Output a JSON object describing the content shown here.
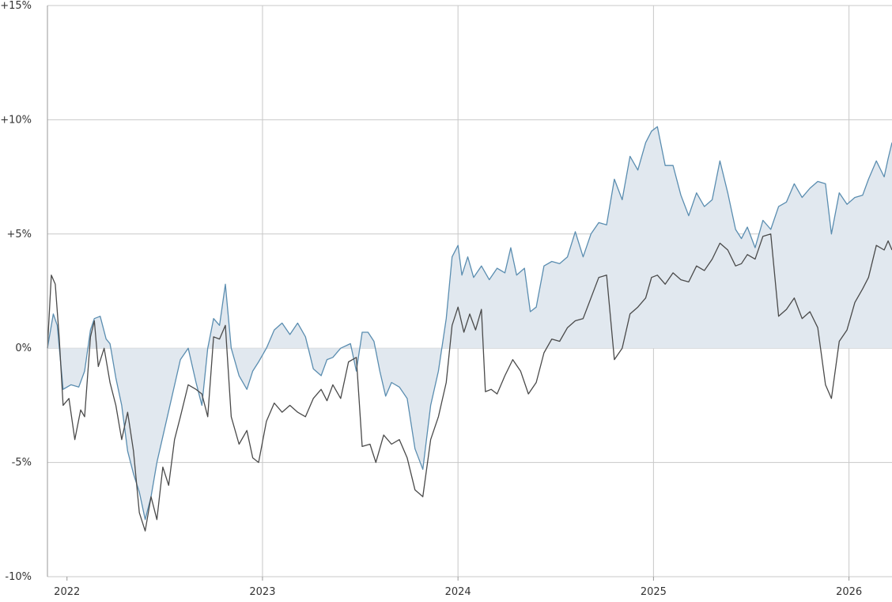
{
  "colors": {
    "series_a": "#5a8db0",
    "series_a_fill": "#e1e8ef",
    "series_b": "#4a4a4a",
    "grid": "#c8c8c8",
    "axis": "#999999",
    "background": "#ffffff"
  },
  "chart_data": {
    "type": "area",
    "title": "",
    "xlabel": "",
    "ylabel": "",
    "grid": true,
    "legend": "none",
    "xlim": [
      2021.9,
      2026.22
    ],
    "ylim": [
      -10,
      15
    ],
    "y_ticks": [
      {
        "value": 15,
        "label": "+15%"
      },
      {
        "value": 10,
        "label": "+10%"
      },
      {
        "value": 5,
        "label": "+5%"
      },
      {
        "value": 0,
        "label": "0%"
      },
      {
        "value": -5,
        "label": "-5%"
      },
      {
        "value": -10,
        "label": "-10%"
      }
    ],
    "x_ticks": [
      {
        "value": 2022.0,
        "label": "2022",
        "grid": false
      },
      {
        "value": 2023.0,
        "label": "2023",
        "grid": true
      },
      {
        "value": 2024.0,
        "label": "2024",
        "grid": true
      },
      {
        "value": 2025.0,
        "label": "2025",
        "grid": true
      },
      {
        "value": 2026.0,
        "label": "2026",
        "grid": true
      }
    ],
    "series": [
      {
        "filled": true,
        "points": [
          [
            2021.9,
            0.0
          ],
          [
            2021.93,
            1.5
          ],
          [
            2021.95,
            1.0
          ],
          [
            2021.98,
            -1.8
          ],
          [
            2022.02,
            -1.6
          ],
          [
            2022.06,
            -1.7
          ],
          [
            2022.09,
            -1.0
          ],
          [
            2022.12,
            0.8
          ],
          [
            2022.14,
            1.3
          ],
          [
            2022.17,
            1.4
          ],
          [
            2022.2,
            0.4
          ],
          [
            2022.22,
            0.2
          ],
          [
            2022.25,
            -1.3
          ],
          [
            2022.28,
            -2.5
          ],
          [
            2022.31,
            -4.5
          ],
          [
            2022.34,
            -5.5
          ],
          [
            2022.37,
            -6.3
          ],
          [
            2022.4,
            -7.5
          ],
          [
            2022.43,
            -6.5
          ],
          [
            2022.46,
            -5.0
          ],
          [
            2022.5,
            -3.5
          ],
          [
            2022.54,
            -2.0
          ],
          [
            2022.58,
            -0.5
          ],
          [
            2022.62,
            0.0
          ],
          [
            2022.66,
            -1.5
          ],
          [
            2022.69,
            -2.5
          ],
          [
            2022.72,
            0.0
          ],
          [
            2022.75,
            1.3
          ],
          [
            2022.78,
            1.0
          ],
          [
            2022.81,
            2.8
          ],
          [
            2022.84,
            0.0
          ],
          [
            2022.88,
            -1.2
          ],
          [
            2022.92,
            -1.8
          ],
          [
            2022.95,
            -1.0
          ],
          [
            2022.98,
            -0.6
          ],
          [
            2023.02,
            0.0
          ],
          [
            2023.06,
            0.8
          ],
          [
            2023.1,
            1.1
          ],
          [
            2023.14,
            0.6
          ],
          [
            2023.18,
            1.1
          ],
          [
            2023.22,
            0.5
          ],
          [
            2023.26,
            -0.9
          ],
          [
            2023.3,
            -1.2
          ],
          [
            2023.33,
            -0.5
          ],
          [
            2023.36,
            -0.4
          ],
          [
            2023.4,
            0.0
          ],
          [
            2023.45,
            0.2
          ],
          [
            2023.48,
            -1.0
          ],
          [
            2023.51,
            0.7
          ],
          [
            2023.54,
            0.7
          ],
          [
            2023.57,
            0.3
          ],
          [
            2023.6,
            -1.0
          ],
          [
            2023.63,
            -2.1
          ],
          [
            2023.66,
            -1.5
          ],
          [
            2023.7,
            -1.7
          ],
          [
            2023.74,
            -2.2
          ],
          [
            2023.78,
            -4.4
          ],
          [
            2023.82,
            -5.3
          ],
          [
            2023.86,
            -2.5
          ],
          [
            2023.9,
            -1.0
          ],
          [
            2023.94,
            1.3
          ],
          [
            2023.97,
            4.0
          ],
          [
            2024.0,
            4.5
          ],
          [
            2024.02,
            3.2
          ],
          [
            2024.05,
            4.0
          ],
          [
            2024.08,
            3.1
          ],
          [
            2024.12,
            3.6
          ],
          [
            2024.16,
            3.0
          ],
          [
            2024.2,
            3.5
          ],
          [
            2024.24,
            3.3
          ],
          [
            2024.27,
            4.4
          ],
          [
            2024.3,
            3.2
          ],
          [
            2024.34,
            3.5
          ],
          [
            2024.37,
            1.6
          ],
          [
            2024.4,
            1.8
          ],
          [
            2024.44,
            3.6
          ],
          [
            2024.48,
            3.8
          ],
          [
            2024.52,
            3.7
          ],
          [
            2024.56,
            4.0
          ],
          [
            2024.6,
            5.1
          ],
          [
            2024.64,
            4.0
          ],
          [
            2024.68,
            5.0
          ],
          [
            2024.72,
            5.5
          ],
          [
            2024.76,
            5.4
          ],
          [
            2024.8,
            7.4
          ],
          [
            2024.84,
            6.5
          ],
          [
            2024.88,
            8.4
          ],
          [
            2024.92,
            7.8
          ],
          [
            2024.96,
            9.0
          ],
          [
            2024.99,
            9.5
          ],
          [
            2025.02,
            9.7
          ],
          [
            2025.06,
            8.0
          ],
          [
            2025.1,
            8.0
          ],
          [
            2025.14,
            6.7
          ],
          [
            2025.18,
            5.8
          ],
          [
            2025.22,
            6.8
          ],
          [
            2025.26,
            6.2
          ],
          [
            2025.3,
            6.5
          ],
          [
            2025.34,
            8.2
          ],
          [
            2025.38,
            6.8
          ],
          [
            2025.42,
            5.2
          ],
          [
            2025.45,
            4.8
          ],
          [
            2025.48,
            5.3
          ],
          [
            2025.52,
            4.4
          ],
          [
            2025.56,
            5.6
          ],
          [
            2025.6,
            5.2
          ],
          [
            2025.64,
            6.2
          ],
          [
            2025.68,
            6.4
          ],
          [
            2025.72,
            7.2
          ],
          [
            2025.76,
            6.6
          ],
          [
            2025.8,
            7.0
          ],
          [
            2025.84,
            7.3
          ],
          [
            2025.88,
            7.2
          ],
          [
            2025.91,
            5.0
          ],
          [
            2025.95,
            6.8
          ],
          [
            2025.99,
            6.3
          ],
          [
            2026.03,
            6.6
          ],
          [
            2026.07,
            6.7
          ],
          [
            2026.1,
            7.4
          ],
          [
            2026.14,
            8.2
          ],
          [
            2026.18,
            7.5
          ],
          [
            2026.2,
            8.3
          ],
          [
            2026.22,
            9.0
          ]
        ]
      },
      {
        "filled": false,
        "points": [
          [
            2021.9,
            0.0
          ],
          [
            2021.92,
            3.2
          ],
          [
            2021.94,
            2.8
          ],
          [
            2021.96,
            0.5
          ],
          [
            2021.98,
            -2.5
          ],
          [
            2022.01,
            -2.2
          ],
          [
            2022.04,
            -4.0
          ],
          [
            2022.07,
            -2.7
          ],
          [
            2022.09,
            -3.0
          ],
          [
            2022.12,
            0.5
          ],
          [
            2022.14,
            1.2
          ],
          [
            2022.16,
            -0.8
          ],
          [
            2022.19,
            0.0
          ],
          [
            2022.22,
            -1.5
          ],
          [
            2022.25,
            -2.5
          ],
          [
            2022.28,
            -4.0
          ],
          [
            2022.31,
            -2.8
          ],
          [
            2022.34,
            -4.5
          ],
          [
            2022.37,
            -7.2
          ],
          [
            2022.4,
            -8.0
          ],
          [
            2022.43,
            -6.5
          ],
          [
            2022.46,
            -7.5
          ],
          [
            2022.49,
            -5.2
          ],
          [
            2022.52,
            -6.0
          ],
          [
            2022.55,
            -4.0
          ],
          [
            2022.58,
            -3.0
          ],
          [
            2022.62,
            -1.6
          ],
          [
            2022.66,
            -1.8
          ],
          [
            2022.69,
            -2.0
          ],
          [
            2022.72,
            -3.0
          ],
          [
            2022.75,
            0.5
          ],
          [
            2022.78,
            0.4
          ],
          [
            2022.81,
            1.0
          ],
          [
            2022.84,
            -3.0
          ],
          [
            2022.88,
            -4.2
          ],
          [
            2022.92,
            -3.6
          ],
          [
            2022.95,
            -4.8
          ],
          [
            2022.98,
            -5.0
          ],
          [
            2023.02,
            -3.2
          ],
          [
            2023.06,
            -2.4
          ],
          [
            2023.1,
            -2.8
          ],
          [
            2023.14,
            -2.5
          ],
          [
            2023.18,
            -2.8
          ],
          [
            2023.22,
            -3.0
          ],
          [
            2023.26,
            -2.2
          ],
          [
            2023.3,
            -1.8
          ],
          [
            2023.33,
            -2.3
          ],
          [
            2023.36,
            -1.6
          ],
          [
            2023.4,
            -2.2
          ],
          [
            2023.44,
            -0.6
          ],
          [
            2023.48,
            -0.4
          ],
          [
            2023.51,
            -4.3
          ],
          [
            2023.55,
            -4.2
          ],
          [
            2023.58,
            -5.0
          ],
          [
            2023.62,
            -3.8
          ],
          [
            2023.66,
            -4.2
          ],
          [
            2023.7,
            -4.0
          ],
          [
            2023.74,
            -4.8
          ],
          [
            2023.78,
            -6.2
          ],
          [
            2023.82,
            -6.5
          ],
          [
            2023.86,
            -4.0
          ],
          [
            2023.9,
            -3.0
          ],
          [
            2023.94,
            -1.5
          ],
          [
            2023.97,
            1.0
          ],
          [
            2024.0,
            1.8
          ],
          [
            2024.03,
            0.7
          ],
          [
            2024.06,
            1.5
          ],
          [
            2024.09,
            0.8
          ],
          [
            2024.12,
            1.7
          ],
          [
            2024.14,
            -1.9
          ],
          [
            2024.17,
            -1.8
          ],
          [
            2024.2,
            -2.0
          ],
          [
            2024.24,
            -1.2
          ],
          [
            2024.28,
            -0.5
          ],
          [
            2024.32,
            -1.0
          ],
          [
            2024.36,
            -2.0
          ],
          [
            2024.4,
            -1.5
          ],
          [
            2024.44,
            -0.2
          ],
          [
            2024.48,
            0.4
          ],
          [
            2024.52,
            0.3
          ],
          [
            2024.56,
            0.9
          ],
          [
            2024.6,
            1.2
          ],
          [
            2024.64,
            1.3
          ],
          [
            2024.68,
            2.2
          ],
          [
            2024.72,
            3.1
          ],
          [
            2024.76,
            3.2
          ],
          [
            2024.8,
            -0.5
          ],
          [
            2024.84,
            0.0
          ],
          [
            2024.88,
            1.5
          ],
          [
            2024.92,
            1.8
          ],
          [
            2024.96,
            2.2
          ],
          [
            2024.99,
            3.1
          ],
          [
            2025.02,
            3.2
          ],
          [
            2025.06,
            2.8
          ],
          [
            2025.1,
            3.3
          ],
          [
            2025.14,
            3.0
          ],
          [
            2025.18,
            2.9
          ],
          [
            2025.22,
            3.6
          ],
          [
            2025.26,
            3.4
          ],
          [
            2025.3,
            3.9
          ],
          [
            2025.34,
            4.6
          ],
          [
            2025.38,
            4.3
          ],
          [
            2025.42,
            3.6
          ],
          [
            2025.45,
            3.7
          ],
          [
            2025.48,
            4.1
          ],
          [
            2025.52,
            3.9
          ],
          [
            2025.56,
            4.9
          ],
          [
            2025.6,
            5.0
          ],
          [
            2025.64,
            1.4
          ],
          [
            2025.68,
            1.7
          ],
          [
            2025.72,
            2.2
          ],
          [
            2025.76,
            1.3
          ],
          [
            2025.8,
            1.6
          ],
          [
            2025.84,
            0.9
          ],
          [
            2025.88,
            -1.6
          ],
          [
            2025.91,
            -2.2
          ],
          [
            2025.95,
            0.3
          ],
          [
            2025.99,
            0.8
          ],
          [
            2026.03,
            2.0
          ],
          [
            2026.07,
            2.6
          ],
          [
            2026.1,
            3.1
          ],
          [
            2026.14,
            4.5
          ],
          [
            2026.18,
            4.3
          ],
          [
            2026.2,
            4.7
          ],
          [
            2026.22,
            4.3
          ]
        ]
      }
    ]
  }
}
